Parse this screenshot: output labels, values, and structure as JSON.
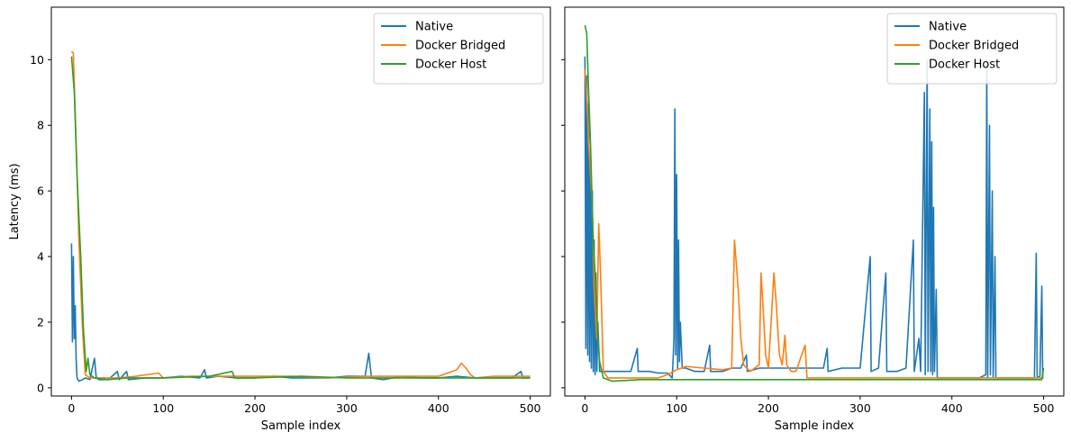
{
  "chart_data": [
    {
      "type": "line",
      "xlabel": "Sample index",
      "ylabel": "Latency (ms)",
      "xlim": [
        -22,
        522
      ],
      "ylim": [
        -0.25,
        11.6
      ],
      "xticks": [
        0,
        100,
        200,
        300,
        400,
        500
      ],
      "yticks": [
        0,
        2,
        4,
        6,
        8,
        10
      ],
      "legend": "top-right",
      "series": [
        {
          "name": "Native",
          "color": "#1f77b4",
          "points": [
            [
              0,
              4.4
            ],
            [
              1,
              1.4
            ],
            [
              2,
              4.0
            ],
            [
              3,
              1.5
            ],
            [
              4,
              2.5
            ],
            [
              5,
              0.9
            ],
            [
              6,
              0.3
            ],
            [
              8,
              0.2
            ],
            [
              12,
              0.25
            ],
            [
              15,
              0.3
            ],
            [
              20,
              0.25
            ],
            [
              25,
              0.9
            ],
            [
              27,
              0.3
            ],
            [
              30,
              0.25
            ],
            [
              40,
              0.25
            ],
            [
              50,
              0.5
            ],
            [
              52,
              0.25
            ],
            [
              60,
              0.5
            ],
            [
              62,
              0.25
            ],
            [
              80,
              0.3
            ],
            [
              100,
              0.3
            ],
            [
              120,
              0.35
            ],
            [
              140,
              0.3
            ],
            [
              145,
              0.55
            ],
            [
              147,
              0.3
            ],
            [
              160,
              0.35
            ],
            [
              180,
              0.3
            ],
            [
              200,
              0.3
            ],
            [
              220,
              0.35
            ],
            [
              240,
              0.3
            ],
            [
              260,
              0.3
            ],
            [
              280,
              0.3
            ],
            [
              300,
              0.35
            ],
            [
              320,
              0.35
            ],
            [
              324,
              1.05
            ],
            [
              327,
              0.3
            ],
            [
              340,
              0.25
            ],
            [
              360,
              0.35
            ],
            [
              380,
              0.3
            ],
            [
              400,
              0.3
            ],
            [
              420,
              0.35
            ],
            [
              440,
              0.3
            ],
            [
              460,
              0.3
            ],
            [
              480,
              0.3
            ],
            [
              490,
              0.5
            ],
            [
              492,
              0.3
            ],
            [
              500,
              0.3
            ]
          ]
        },
        {
          "name": "Docker Bridged",
          "color": "#ff7f0e",
          "points": [
            [
              0,
              10.25
            ],
            [
              2,
              10.2
            ],
            [
              5,
              7.5
            ],
            [
              8,
              4.5
            ],
            [
              12,
              1.8
            ],
            [
              15,
              0.4
            ],
            [
              20,
              0.3
            ],
            [
              30,
              0.3
            ],
            [
              50,
              0.3
            ],
            [
              70,
              0.35
            ],
            [
              95,
              0.45
            ],
            [
              100,
              0.3
            ],
            [
              130,
              0.35
            ],
            [
              160,
              0.35
            ],
            [
              200,
              0.35
            ],
            [
              240,
              0.35
            ],
            [
              280,
              0.3
            ],
            [
              320,
              0.35
            ],
            [
              360,
              0.35
            ],
            [
              400,
              0.35
            ],
            [
              415,
              0.5
            ],
            [
              420,
              0.55
            ],
            [
              425,
              0.75
            ],
            [
              430,
              0.6
            ],
            [
              435,
              0.4
            ],
            [
              440,
              0.3
            ],
            [
              460,
              0.35
            ],
            [
              480,
              0.35
            ],
            [
              500,
              0.35
            ]
          ]
        },
        {
          "name": "Docker Host",
          "color": "#2ca02c",
          "points": [
            [
              0,
              10.1
            ],
            [
              3,
              9.0
            ],
            [
              6,
              6.5
            ],
            [
              10,
              4.0
            ],
            [
              13,
              1.8
            ],
            [
              16,
              0.5
            ],
            [
              18,
              0.9
            ],
            [
              20,
              0.4
            ],
            [
              25,
              0.3
            ],
            [
              40,
              0.25
            ],
            [
              60,
              0.3
            ],
            [
              100,
              0.3
            ],
            [
              150,
              0.35
            ],
            [
              175,
              0.5
            ],
            [
              178,
              0.3
            ],
            [
              200,
              0.3
            ],
            [
              250,
              0.35
            ],
            [
              300,
              0.3
            ],
            [
              350,
              0.3
            ],
            [
              400,
              0.3
            ],
            [
              450,
              0.3
            ],
            [
              500,
              0.3
            ]
          ]
        }
      ]
    },
    {
      "type": "line",
      "xlabel": "Sample index",
      "ylabel": "",
      "xlim": [
        -22,
        522
      ],
      "ylim": [
        -0.25,
        11.6
      ],
      "xticks": [
        0,
        100,
        200,
        300,
        400,
        500
      ],
      "yticks": [
        0,
        2,
        4,
        6,
        8,
        10
      ],
      "legend": "top-right",
      "series": [
        {
          "name": "Native",
          "color": "#1f77b4",
          "points": [
            [
              0,
              10.1
            ],
            [
              1,
              1.2
            ],
            [
              2,
              9.5
            ],
            [
              3,
              1.0
            ],
            [
              4,
              8.7
            ],
            [
              5,
              0.8
            ],
            [
              6,
              7.0
            ],
            [
              7,
              0.6
            ],
            [
              8,
              6.0
            ],
            [
              9,
              0.5
            ],
            [
              10,
              4.5
            ],
            [
              11,
              0.4
            ],
            [
              12,
              3.5
            ],
            [
              13,
              0.5
            ],
            [
              14,
              2.0
            ],
            [
              16,
              0.5
            ],
            [
              20,
              0.5
            ],
            [
              30,
              0.5
            ],
            [
              40,
              0.5
            ],
            [
              50,
              0.5
            ],
            [
              57,
              1.2
            ],
            [
              58,
              0.5
            ],
            [
              70,
              0.5
            ],
            [
              80,
              0.45
            ],
            [
              90,
              0.45
            ],
            [
              95,
              0.3
            ],
            [
              96,
              0.8
            ],
            [
              97,
              1.5
            ],
            [
              98,
              8.5
            ],
            [
              99,
              1.0
            ],
            [
              100,
              6.5
            ],
            [
              101,
              0.6
            ],
            [
              102,
              4.5
            ],
            [
              103,
              0.8
            ],
            [
              104,
              2.0
            ],
            [
              106,
              0.6
            ],
            [
              110,
              0.6
            ],
            [
              120,
              0.5
            ],
            [
              125,
              0.5
            ],
            [
              130,
              0.5
            ],
            [
              136,
              1.3
            ],
            [
              137,
              0.5
            ],
            [
              150,
              0.5
            ],
            [
              160,
              0.6
            ],
            [
              170,
              0.6
            ],
            [
              176,
              1.0
            ],
            [
              177,
              0.5
            ],
            [
              190,
              0.6
            ],
            [
              200,
              0.6
            ],
            [
              210,
              0.6
            ],
            [
              230,
              0.6
            ],
            [
              240,
              0.6
            ],
            [
              260,
              0.6
            ],
            [
              264,
              1.2
            ],
            [
              265,
              0.5
            ],
            [
              280,
              0.6
            ],
            [
              300,
              0.6
            ],
            [
              311,
              4.0
            ],
            [
              312,
              0.5
            ],
            [
              320,
              0.6
            ],
            [
              328,
              3.5
            ],
            [
              329,
              0.5
            ],
            [
              340,
              0.5
            ],
            [
              350,
              0.6
            ],
            [
              358,
              4.5
            ],
            [
              359,
              0.5
            ],
            [
              364,
              1.5
            ],
            [
              366,
              0.5
            ],
            [
              370,
              9.0
            ],
            [
              371,
              0.4
            ],
            [
              373,
              10.0
            ],
            [
              374,
              0.5
            ],
            [
              376,
              8.5
            ],
            [
              377,
              0.5
            ],
            [
              378,
              7.5
            ],
            [
              379,
              0.4
            ],
            [
              380,
              5.5
            ],
            [
              381,
              0.5
            ],
            [
              383,
              3.0
            ],
            [
              384,
              0.3
            ],
            [
              390,
              0.3
            ],
            [
              400,
              0.3
            ],
            [
              410,
              0.3
            ],
            [
              420,
              0.3
            ],
            [
              430,
              0.3
            ],
            [
              437,
              0.4
            ],
            [
              438,
              10.0
            ],
            [
              439,
              0.3
            ],
            [
              441,
              8.0
            ],
            [
              442,
              0.4
            ],
            [
              444,
              6.0
            ],
            [
              445,
              0.3
            ],
            [
              447,
              4.0
            ],
            [
              448,
              0.3
            ],
            [
              450,
              0.3
            ],
            [
              470,
              0.3
            ],
            [
              490,
              0.3
            ],
            [
              492,
              4.1
            ],
            [
              493,
              0.3
            ],
            [
              496,
              0.35
            ],
            [
              498,
              3.1
            ],
            [
              499,
              0.3
            ],
            [
              500,
              0.3
            ]
          ]
        },
        {
          "name": "Docker Bridged",
          "color": "#ff7f0e",
          "points": [
            [
              0,
              9.7
            ],
            [
              2,
              9.0
            ],
            [
              4,
              7.5
            ],
            [
              8,
              5.5
            ],
            [
              10,
              3.0
            ],
            [
              13,
              1.5
            ],
            [
              15,
              5.0
            ],
            [
              17,
              3.5
            ],
            [
              20,
              0.5
            ],
            [
              25,
              0.3
            ],
            [
              40,
              0.3
            ],
            [
              60,
              0.3
            ],
            [
              80,
              0.3
            ],
            [
              90,
              0.4
            ],
            [
              100,
              0.55
            ],
            [
              110,
              0.65
            ],
            [
              130,
              0.6
            ],
            [
              150,
              0.55
            ],
            [
              160,
              0.6
            ],
            [
              163,
              4.5
            ],
            [
              165,
              3.8
            ],
            [
              167,
              3.0
            ],
            [
              170,
              1.5
            ],
            [
              173,
              0.7
            ],
            [
              180,
              0.5
            ],
            [
              190,
              0.7
            ],
            [
              192,
              3.5
            ],
            [
              194,
              2.5
            ],
            [
              197,
              1.0
            ],
            [
              200,
              0.6
            ],
            [
              206,
              3.5
            ],
            [
              208,
              2.8
            ],
            [
              212,
              1.0
            ],
            [
              215,
              0.7
            ],
            [
              218,
              1.6
            ],
            [
              220,
              0.7
            ],
            [
              225,
              0.5
            ],
            [
              230,
              0.5
            ],
            [
              240,
              1.3
            ],
            [
              242,
              0.3
            ],
            [
              260,
              0.3
            ],
            [
              300,
              0.3
            ],
            [
              350,
              0.3
            ],
            [
              390,
              0.3
            ],
            [
              400,
              0.3
            ],
            [
              450,
              0.3
            ],
            [
              500,
              0.3
            ]
          ]
        },
        {
          "name": "Docker Host",
          "color": "#2ca02c",
          "points": [
            [
              0,
              11.05
            ],
            [
              2,
              10.8
            ],
            [
              4,
              9.0
            ],
            [
              6,
              7.5
            ],
            [
              9,
              4.5
            ],
            [
              12,
              3.0
            ],
            [
              14,
              1.5
            ],
            [
              16,
              0.8
            ],
            [
              20,
              0.3
            ],
            [
              30,
              0.2
            ],
            [
              60,
              0.25
            ],
            [
              100,
              0.25
            ],
            [
              150,
              0.25
            ],
            [
              200,
              0.25
            ],
            [
              250,
              0.25
            ],
            [
              300,
              0.25
            ],
            [
              350,
              0.25
            ],
            [
              400,
              0.25
            ],
            [
              450,
              0.25
            ],
            [
              498,
              0.25
            ],
            [
              500,
              0.6
            ]
          ]
        }
      ]
    }
  ]
}
